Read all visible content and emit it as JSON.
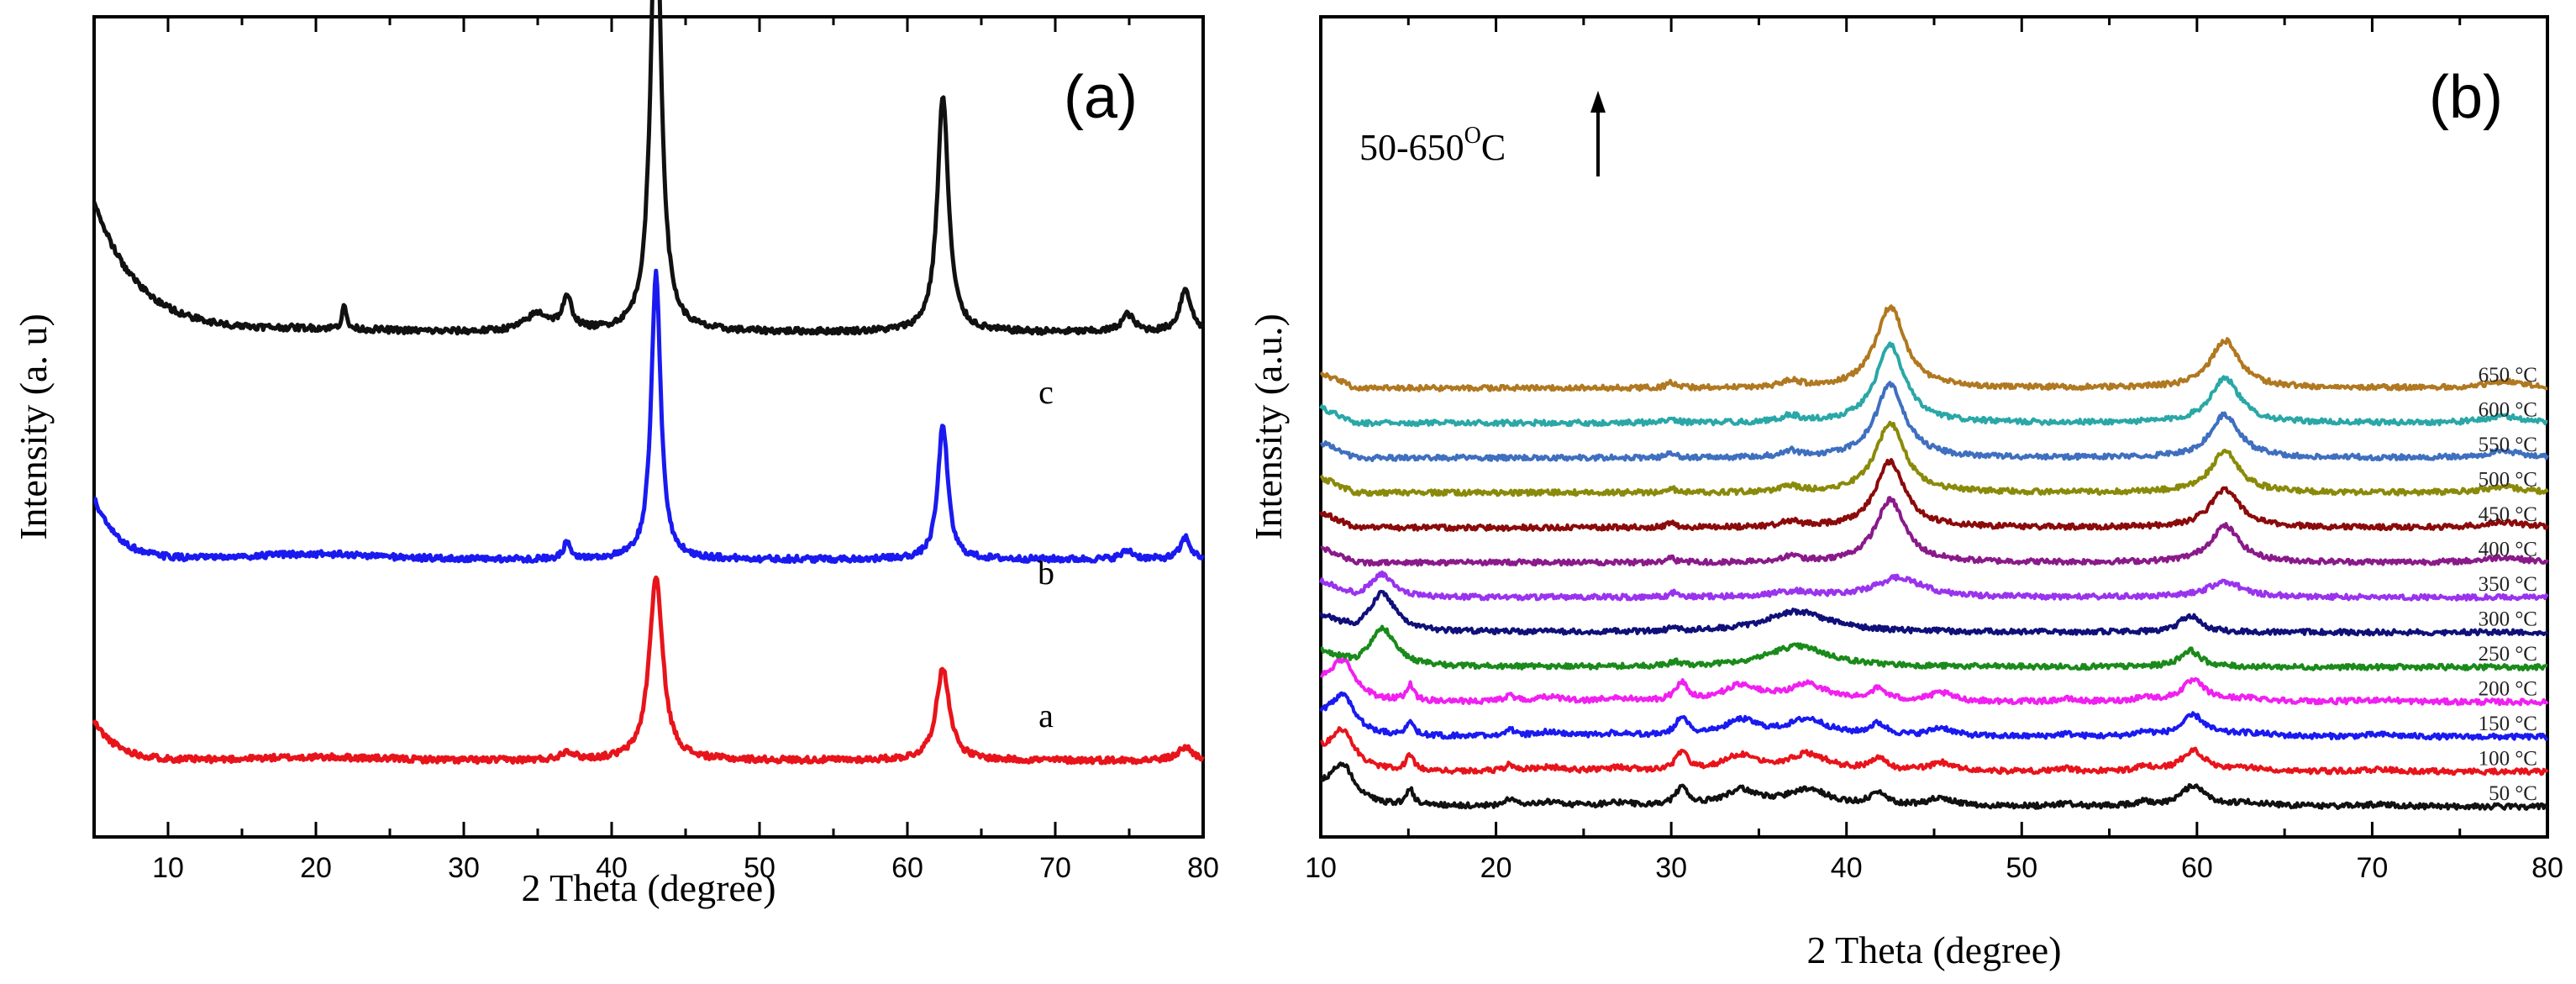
{
  "chart_data": [
    {
      "type": "line",
      "panel_label": "(a)",
      "xlabel": "2 Theta (degree)",
      "ylabel": "Intensity (a. u)",
      "xlim": [
        5,
        80
      ],
      "xticks": [
        "10",
        "20",
        "30",
        "40",
        "50",
        "60",
        "70",
        "80"
      ],
      "yticks": "none",
      "series": [
        {
          "name": "a",
          "color": "#e8141b",
          "offset": 0.0,
          "peaks": [
            [
              43.0,
              0.42,
              0.55
            ],
            [
              62.4,
              0.21,
              0.55
            ],
            [
              37.0,
              0.02,
              0.5
            ],
            [
              78.8,
              0.03,
              0.6
            ]
          ]
        },
        {
          "name": "b",
          "color": "#1a1af0",
          "offset": 0.46,
          "peaks": [
            [
              43.0,
              0.66,
              0.38
            ],
            [
              62.4,
              0.31,
              0.4
            ],
            [
              37.0,
              0.04,
              0.3
            ],
            [
              74.9,
              0.02,
              0.5
            ],
            [
              78.8,
              0.05,
              0.4
            ]
          ]
        },
        {
          "name": "c",
          "color": "#111111",
          "offset": 0.98,
          "peaks": [
            [
              43.0,
              1.04,
              0.42
            ],
            [
              62.4,
              0.54,
              0.45
            ],
            [
              35.0,
              0.04,
              1.0
            ],
            [
              37.0,
              0.07,
              0.4
            ],
            [
              21.9,
              0.06,
              0.15
            ],
            [
              74.9,
              0.04,
              0.5
            ],
            [
              78.8,
              0.1,
              0.45
            ]
          ]
        }
      ]
    },
    {
      "type": "line",
      "panel_label": "(b)",
      "xlabel": "2 Theta (degree)",
      "ylabel": "Intensity (a.u.)",
      "xlim": [
        10,
        80
      ],
      "xticks": [
        "10",
        "20",
        "30",
        "40",
        "50",
        "60",
        "70",
        "80"
      ],
      "yticks": "none",
      "annotation": {
        "text": "50-650",
        "unit_sup": "O",
        "unit": "C",
        "arrow": "up"
      },
      "series": [
        {
          "name": "50 °C",
          "color": "#111111",
          "phase": "low"
        },
        {
          "name": "100 °C",
          "color": "#e8141b",
          "phase": "low"
        },
        {
          "name": "150 °C",
          "color": "#1a1af0",
          "phase": "low"
        },
        {
          "name": "200 °C",
          "color": "#f020f0",
          "phase": "low"
        },
        {
          "name": "250 °C",
          "color": "#1a8a1a",
          "phase": "mid"
        },
        {
          "name": "300 °C",
          "color": "#10107a",
          "phase": "mid"
        },
        {
          "name": "350 °C",
          "color": "#9933ee",
          "phase": "trans"
        },
        {
          "name": "400 °C",
          "color": "#8a1a8a",
          "phase": "high"
        },
        {
          "name": "450 °C",
          "color": "#8b0a0a",
          "phase": "high"
        },
        {
          "name": "500 °C",
          "color": "#8a8a0a",
          "phase": "high"
        },
        {
          "name": "550 °C",
          "color": "#3f6fbf",
          "phase": "high"
        },
        {
          "name": "600 °C",
          "color": "#2aa7a7",
          "phase": "high"
        },
        {
          "name": "650 °C",
          "color": "#b07820",
          "phase": "high"
        }
      ]
    }
  ]
}
